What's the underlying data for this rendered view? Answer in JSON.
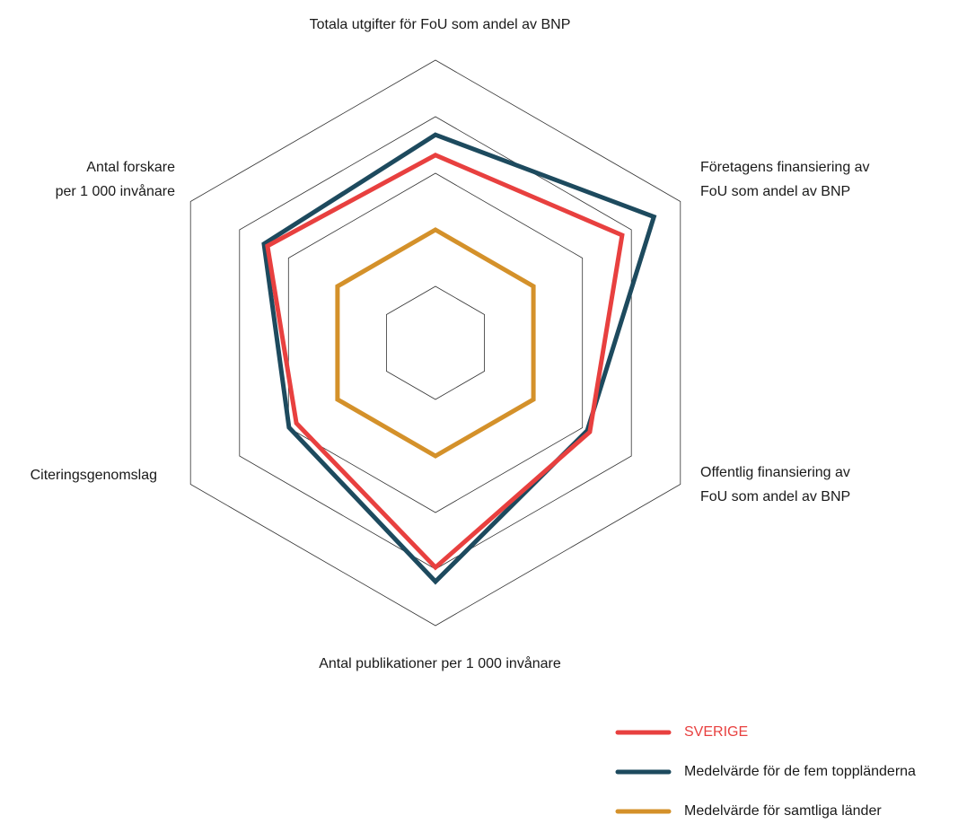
{
  "chart_data": {
    "type": "radar",
    "categories": [
      [
        "Totala utgifter för FoU som andel av BNP"
      ],
      [
        "Företagens finansiering av",
        "FoU som andel av BNP"
      ],
      [
        "Offentlig finansiering av",
        "FoU som andel av BNP"
      ],
      [
        "Antal publikationer per 1 000 invånare"
      ],
      [
        "Citeringsgenomslag"
      ],
      [
        "Antal forskare",
        "per 1 000 invånare"
      ]
    ],
    "rlim": [
      0,
      5
    ],
    "rticks": [
      1,
      2,
      3,
      4,
      5
    ],
    "grid": true,
    "legend": "bottom-right",
    "series": [
      {
        "name": "SVERIGE",
        "color": "#e8403f",
        "values": [
          3.32,
          3.81,
          3.15,
          3.97,
          2.84,
          3.43
        ]
      },
      {
        "name": "Medelvärde för de fem toppländerna",
        "color": "#1d4a5e",
        "values": [
          3.68,
          4.46,
          3.1,
          4.22,
          2.99,
          3.5
        ]
      },
      {
        "name": "Medelvärde för samtliga länder",
        "color": "#d4912a",
        "values": [
          2,
          2,
          2,
          2,
          2,
          2
        ]
      }
    ]
  }
}
